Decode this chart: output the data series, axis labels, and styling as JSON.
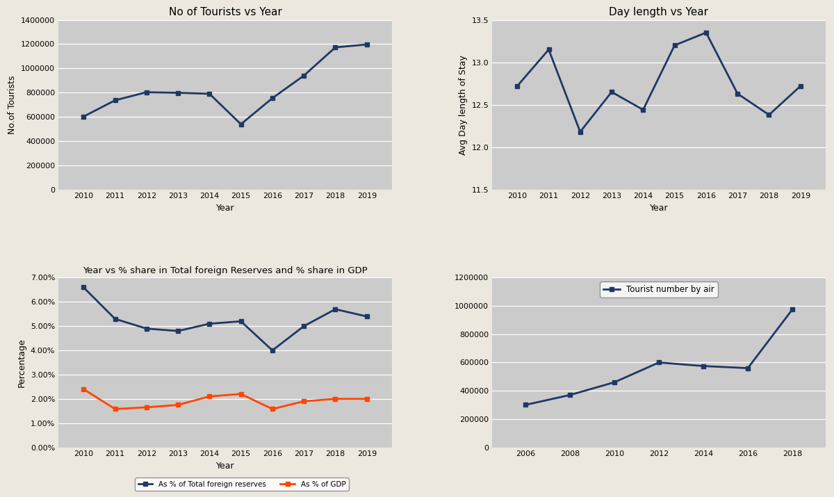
{
  "plot1": {
    "title": "No of Tourists vs Year",
    "xlabel": "Year",
    "ylabel": "No.of Tourists",
    "years": [
      2010,
      2011,
      2012,
      2013,
      2014,
      2015,
      2016,
      2017,
      2018,
      2019
    ],
    "values": [
      602000,
      736000,
      803000,
      798000,
      790000,
      539000,
      754000,
      940000,
      1173000,
      1197000
    ],
    "color": "#1F3864",
    "marker": "s",
    "ylim": [
      0,
      1400000
    ],
    "yticks": [
      0,
      200000,
      400000,
      600000,
      800000,
      1000000,
      1200000,
      1400000
    ]
  },
  "plot2": {
    "title": "Day length vs Year",
    "xlabel": "Year",
    "ylabel": "Avg Day length of Stay",
    "years": [
      2010,
      2011,
      2012,
      2013,
      2014,
      2015,
      2016,
      2017,
      2018,
      2019
    ],
    "values": [
      12.72,
      13.15,
      12.18,
      12.65,
      12.44,
      13.2,
      13.35,
      12.63,
      12.38,
      12.72
    ],
    "color": "#1F3864",
    "marker": "s",
    "ylim": [
      11.5,
      13.5
    ],
    "yticks": [
      11.5,
      12.0,
      12.5,
      13.0,
      13.5
    ]
  },
  "plot3": {
    "title": "Year vs % share in Total foreign Reserves and % share in GDP",
    "xlabel": "Year",
    "ylabel": "Percentage",
    "years": [
      2010,
      2011,
      2012,
      2013,
      2014,
      2015,
      2016,
      2017,
      2018,
      2019
    ],
    "foreign_reserves": [
      0.066,
      0.053,
      0.049,
      0.048,
      0.051,
      0.052,
      0.04,
      0.05,
      0.057,
      0.054
    ],
    "gdp": [
      0.024,
      0.0158,
      0.0165,
      0.0175,
      0.021,
      0.022,
      0.0158,
      0.019,
      0.02,
      0.02
    ],
    "color_reserves": "#1F3864",
    "color_gdp": "#FF4500",
    "marker": "s",
    "legend_reserves": "As % of Total foreign reserves",
    "legend_gdp": "As % of GDP"
  },
  "plot4": {
    "legend": "Tourist number by air",
    "years": [
      2006,
      2008,
      2010,
      2012,
      2014,
      2016,
      2018
    ],
    "values": [
      300000,
      370000,
      460000,
      600000,
      575000,
      560000,
      975000
    ],
    "color": "#1F3864",
    "marker": "s",
    "ylim": [
      0,
      1200000
    ],
    "yticks": [
      0,
      200000,
      400000,
      600000,
      800000,
      1000000,
      1200000
    ]
  },
  "bg_outer": "#EDE8DF",
  "bg_plot": "#CBCBCB",
  "line_width": 2.0,
  "marker_size": 5
}
